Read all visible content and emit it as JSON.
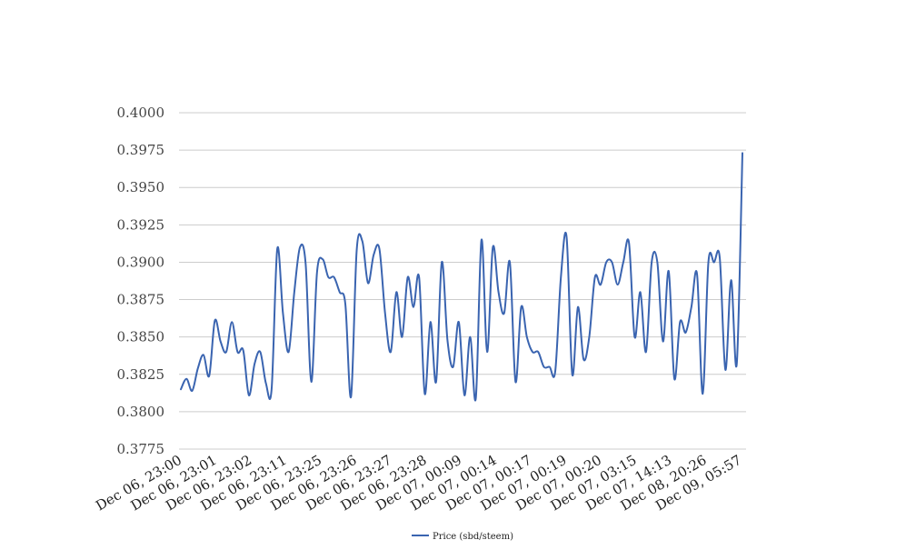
{
  "chart_data": {
    "type": "line",
    "title": "",
    "xlabel": "",
    "ylabel": "",
    "ylim": [
      0.3775,
      0.4
    ],
    "yticks": [
      "0.3775",
      "0.3800",
      "0.3825",
      "0.3850",
      "0.3875",
      "0.3900",
      "0.3925",
      "0.3950",
      "0.3975",
      "0.4000"
    ],
    "xtick_labels": [
      "Dec 06, 23:00",
      "Dec 06, 23:01",
      "Dec 06, 23:02",
      "Dec 06, 23:11",
      "Dec 06, 23:25",
      "Dec 06, 23:26",
      "Dec 06, 23:27",
      "Dec 06, 23:28",
      "Dec 07, 00:09",
      "Dec 07, 00:14",
      "Dec 07, 00:17",
      "Dec 07, 00:19",
      "Dec 07, 00:20",
      "Dec 07, 03:15",
      "Dec 07, 14:13",
      "Dec 08, 20:26",
      "Dec 09, 05:57"
    ],
    "grid": true,
    "legend_position": "bottom-center",
    "color": "#3a64b0",
    "series": [
      {
        "name": "Price (sbd/steem)",
        "values": [
          0.3815,
          0.3822,
          0.3814,
          0.3829,
          0.3838,
          0.3824,
          0.3861,
          0.3847,
          0.384,
          0.386,
          0.384,
          0.3841,
          0.3811,
          0.3832,
          0.384,
          0.3819,
          0.3815,
          0.3909,
          0.3866,
          0.384,
          0.388,
          0.391,
          0.3899,
          0.382,
          0.3893,
          0.3902,
          0.389,
          0.389,
          0.388,
          0.3872,
          0.381,
          0.3908,
          0.3914,
          0.3886,
          0.3905,
          0.3909,
          0.3866,
          0.384,
          0.388,
          0.385,
          0.389,
          0.387,
          0.389,
          0.3812,
          0.386,
          0.382,
          0.39,
          0.3848,
          0.383,
          0.386,
          0.3811,
          0.385,
          0.3809,
          0.3915,
          0.384,
          0.391,
          0.388,
          0.3866,
          0.39,
          0.382,
          0.387,
          0.385,
          0.384,
          0.384,
          0.383,
          0.383,
          0.3827,
          0.389,
          0.3917,
          0.3825,
          0.387,
          0.3835,
          0.385,
          0.389,
          0.3885,
          0.39,
          0.39,
          0.3885,
          0.39,
          0.3913,
          0.385,
          0.388,
          0.384,
          0.39,
          0.39,
          0.3847,
          0.3894,
          0.3822,
          0.386,
          0.3853,
          0.387,
          0.3892,
          0.3812,
          0.39,
          0.39,
          0.3903,
          0.3828,
          0.3888,
          0.3832,
          0.3973
        ]
      }
    ]
  }
}
